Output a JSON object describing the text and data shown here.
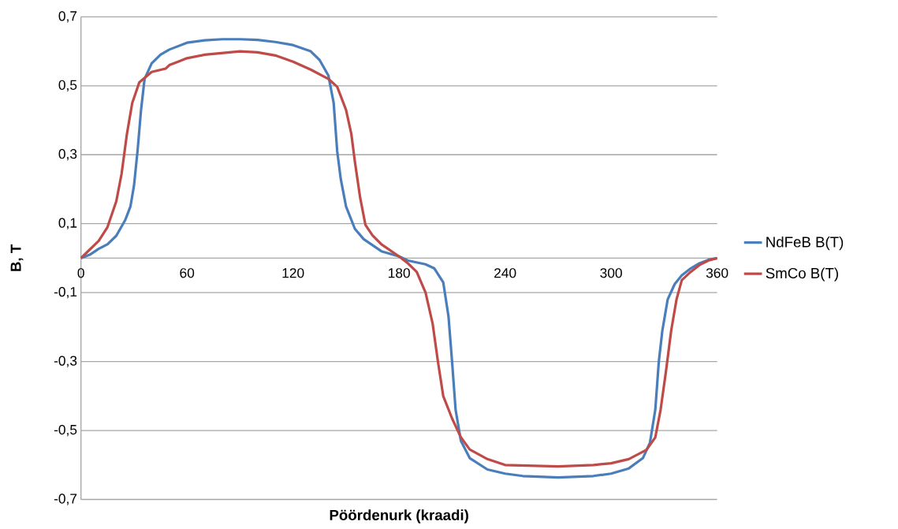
{
  "chart_data": {
    "type": "line",
    "xlabel": "Pöördenurk (kraadi)",
    "ylabel": "B, T",
    "xlim": [
      0,
      360
    ],
    "xticks": [
      0,
      60,
      120,
      180,
      240,
      300,
      360
    ],
    "ylim": [
      -0.7,
      0.7
    ],
    "yticks": [
      {
        "value": -0.7,
        "label": "-0,7"
      },
      {
        "value": -0.5,
        "label": "-0,5"
      },
      {
        "value": -0.3,
        "label": "-0,3"
      },
      {
        "value": -0.1,
        "label": "-0,1"
      },
      {
        "value": 0.1,
        "label": "0,1"
      },
      {
        "value": 0.3,
        "label": "0,3"
      },
      {
        "value": 0.5,
        "label": "0,5"
      },
      {
        "value": 0.7,
        "label": "0,7"
      }
    ],
    "grid": "y",
    "legend": "right",
    "marker": "none",
    "line_style": "solid",
    "series": [
      {
        "name": "NdFeB B(T)",
        "color": "#4a7ebb",
        "x": [
          0,
          5,
          10,
          15,
          20,
          25,
          28,
          30,
          32,
          34,
          36,
          40,
          45,
          50,
          60,
          70,
          80,
          90,
          100,
          110,
          120,
          130,
          135,
          140,
          143,
          145,
          147,
          150,
          155,
          160,
          170,
          180,
          185,
          195,
          200,
          205,
          208,
          210,
          212,
          215,
          220,
          230,
          240,
          250,
          270,
          290,
          300,
          310,
          318,
          322,
          325,
          327,
          329,
          332,
          336,
          340,
          345,
          350,
          355,
          360
        ],
        "values": [
          0,
          0.01,
          0.027,
          0.04,
          0.065,
          0.11,
          0.15,
          0.21,
          0.31,
          0.43,
          0.52,
          0.565,
          0.59,
          0.605,
          0.625,
          0.632,
          0.635,
          0.635,
          0.633,
          0.627,
          0.618,
          0.6,
          0.575,
          0.53,
          0.45,
          0.31,
          0.23,
          0.15,
          0.085,
          0.055,
          0.02,
          0.005,
          -0.007,
          -0.018,
          -0.03,
          -0.07,
          -0.17,
          -0.3,
          -0.44,
          -0.53,
          -0.58,
          -0.613,
          -0.625,
          -0.632,
          -0.636,
          -0.632,
          -0.625,
          -0.61,
          -0.58,
          -0.535,
          -0.44,
          -0.3,
          -0.21,
          -0.12,
          -0.075,
          -0.05,
          -0.03,
          -0.015,
          -0.005,
          0
        ]
      },
      {
        "name": "SmCo B(T)",
        "color": "#be4b48",
        "x": [
          0,
          5,
          10,
          15,
          20,
          23,
          26,
          29,
          33,
          40,
          48,
          50,
          55,
          60,
          70,
          80,
          90,
          100,
          110,
          120,
          130,
          140,
          145,
          150,
          153,
          155,
          158,
          161,
          165,
          170,
          180,
          185,
          190,
          195,
          199,
          202,
          205,
          210,
          215,
          220,
          230,
          240,
          270,
          290,
          300,
          310,
          320,
          325,
          328,
          331,
          334,
          337,
          340,
          345,
          350,
          355,
          360
        ],
        "values": [
          0,
          0.025,
          0.05,
          0.09,
          0.165,
          0.245,
          0.36,
          0.45,
          0.51,
          0.54,
          0.55,
          0.56,
          0.57,
          0.58,
          0.59,
          0.595,
          0.6,
          0.597,
          0.588,
          0.57,
          0.547,
          0.52,
          0.497,
          0.43,
          0.36,
          0.28,
          0.175,
          0.096,
          0.066,
          0.04,
          0.005,
          -0.015,
          -0.04,
          -0.1,
          -0.19,
          -0.3,
          -0.4,
          -0.465,
          -0.52,
          -0.555,
          -0.583,
          -0.6,
          -0.604,
          -0.6,
          -0.595,
          -0.583,
          -0.556,
          -0.52,
          -0.44,
          -0.33,
          -0.21,
          -0.12,
          -0.064,
          -0.04,
          -0.02,
          -0.007,
          0
        ]
      }
    ]
  }
}
